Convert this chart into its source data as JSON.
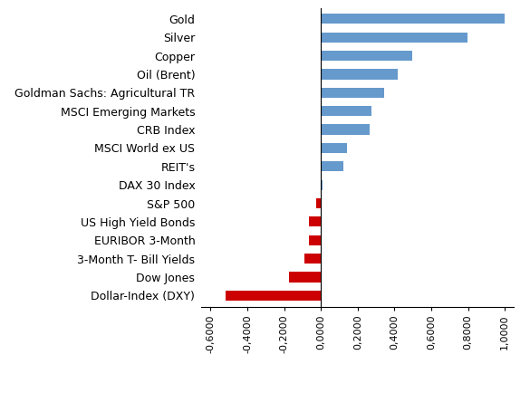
{
  "categories": [
    "Dollar-Index (DXY)",
    "Dow Jones",
    "3-Month T- Bill Yields",
    "EURIBOR 3-Month",
    "US High Yield Bonds",
    "S&P 500",
    "DAX 30 Index",
    "REIT's",
    "MSCI World ex US",
    "CRB Index",
    "MSCI Emerging Markets",
    "Goldman Sachs: Agricultural TR",
    "Oil (Brent)",
    "Copper",
    "Silver",
    "Gold"
  ],
  "values": [
    -0.52,
    -0.175,
    -0.09,
    -0.065,
    -0.065,
    -0.025,
    0.008,
    0.12,
    0.14,
    0.265,
    0.275,
    0.345,
    0.415,
    0.495,
    0.795,
    1.0
  ],
  "bar_color_positive": "#6699CC",
  "bar_color_negative": "#CC0000",
  "xlim": [
    -0.65,
    1.05
  ],
  "xticks": [
    -0.6,
    -0.4,
    -0.2,
    0.0,
    0.2,
    0.4,
    0.6,
    0.8,
    1.0
  ],
  "xtick_labels": [
    "-0,6000",
    "-0,4000",
    "-0,2000",
    "0,0000",
    "0,2000",
    "0,4000",
    "0,6000",
    "0,8000",
    "1,0000"
  ],
  "background_color": "#ffffff",
  "bar_height": 0.55,
  "label_fontsize": 9,
  "tick_fontsize": 8
}
